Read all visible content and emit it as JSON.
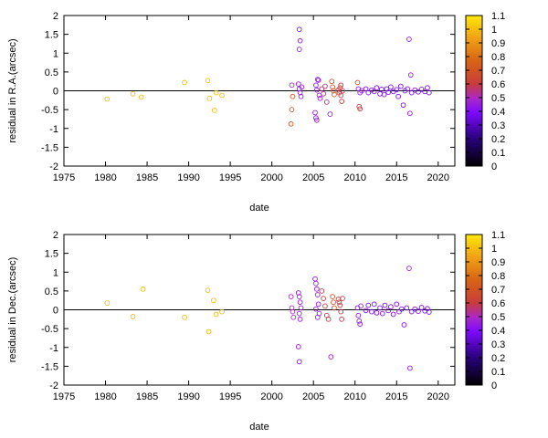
{
  "chart_data": [
    {
      "type": "scatter",
      "title": "",
      "xlabel": "date",
      "ylabel": "residual in R.A.(arcsec)",
      "xlim": [
        1975,
        2022
      ],
      "ylim": [
        -2,
        2
      ],
      "xticks": [
        "1975",
        "1980",
        "1985",
        "1990",
        "1995",
        "2000",
        "2005",
        "2010",
        "2015",
        "2020"
      ],
      "yticks": [
        "-2",
        "-1.5",
        "-1",
        "-0.5",
        "0",
        "0.5",
        "1",
        "1.5",
        "2"
      ],
      "zero_line": true,
      "grid": false,
      "marker": "open-circle",
      "colorbar": {
        "colormap": "black-purple-red-orange-yellow",
        "range": [
          0,
          1.1
        ],
        "ticks": [
          "0",
          "0.1",
          "0.2",
          "0.3",
          "0.4",
          "0.5",
          "0.6",
          "0.7",
          "0.8",
          "0.9",
          "1",
          "1.1"
        ]
      },
      "points": [
        {
          "x": 1980.2,
          "y": -0.22,
          "c": 1.0
        },
        {
          "x": 1983.3,
          "y": -0.08,
          "c": 1.0
        },
        {
          "x": 1984.3,
          "y": -0.17,
          "c": 1.0
        },
        {
          "x": 1989.5,
          "y": 0.22,
          "c": 1.0
        },
        {
          "x": 1992.3,
          "y": 0.27,
          "c": 1.0
        },
        {
          "x": 1992.5,
          "y": -0.2,
          "c": 1.0
        },
        {
          "x": 1993.1,
          "y": -0.52,
          "c": 1.0
        },
        {
          "x": 1993.3,
          "y": -0.05,
          "c": 1.0
        },
        {
          "x": 1994.0,
          "y": -0.12,
          "c": 1.0
        },
        {
          "x": 2002.3,
          "y": -0.88,
          "c": 0.7
        },
        {
          "x": 2002.4,
          "y": -0.5,
          "c": 0.7
        },
        {
          "x": 2002.5,
          "y": -0.15,
          "c": 0.7
        },
        {
          "x": 2002.4,
          "y": 0.15,
          "c": 0.5
        },
        {
          "x": 2003.3,
          "y": 1.63,
          "c": 0.45
        },
        {
          "x": 2003.4,
          "y": 1.33,
          "c": 0.45
        },
        {
          "x": 2003.3,
          "y": 1.1,
          "c": 0.45
        },
        {
          "x": 2003.2,
          "y": 0.18,
          "c": 0.45
        },
        {
          "x": 2003.3,
          "y": 0.05,
          "c": 0.45
        },
        {
          "x": 2003.4,
          "y": -0.05,
          "c": 0.45
        },
        {
          "x": 2003.5,
          "y": -0.15,
          "c": 0.45
        },
        {
          "x": 2003.6,
          "y": 0.1,
          "c": 0.45
        },
        {
          "x": 2005.2,
          "y": -0.58,
          "c": 0.45
        },
        {
          "x": 2005.3,
          "y": -0.72,
          "c": 0.45
        },
        {
          "x": 2005.4,
          "y": -0.78,
          "c": 0.45
        },
        {
          "x": 2005.5,
          "y": 0.3,
          "c": 0.45
        },
        {
          "x": 2005.6,
          "y": 0.28,
          "c": 0.45
        },
        {
          "x": 2005.3,
          "y": 0.15,
          "c": 0.45
        },
        {
          "x": 2005.4,
          "y": 0.02,
          "c": 0.45
        },
        {
          "x": 2005.7,
          "y": -0.12,
          "c": 0.45
        },
        {
          "x": 2005.8,
          "y": -0.2,
          "c": 0.45
        },
        {
          "x": 2006.0,
          "y": 0.05,
          "c": 0.55
        },
        {
          "x": 2006.2,
          "y": -0.08,
          "c": 0.55
        },
        {
          "x": 2006.4,
          "y": 0.12,
          "c": 0.55
        },
        {
          "x": 2006.6,
          "y": -0.3,
          "c": 0.55
        },
        {
          "x": 2007.0,
          "y": -0.62,
          "c": 0.45
        },
        {
          "x": 2007.2,
          "y": 0.25,
          "c": 0.7
        },
        {
          "x": 2007.3,
          "y": 0.1,
          "c": 0.7
        },
        {
          "x": 2007.4,
          "y": 0.0,
          "c": 0.7
        },
        {
          "x": 2007.5,
          "y": -0.1,
          "c": 0.7
        },
        {
          "x": 2008.0,
          "y": 0.02,
          "c": 0.6
        },
        {
          "x": 2008.1,
          "y": -0.05,
          "c": 0.6
        },
        {
          "x": 2008.2,
          "y": 0.08,
          "c": 0.6
        },
        {
          "x": 2008.3,
          "y": -0.12,
          "c": 0.6
        },
        {
          "x": 2008.4,
          "y": -0.28,
          "c": 0.6
        },
        {
          "x": 2008.3,
          "y": 0.15,
          "c": 0.6
        },
        {
          "x": 2008.5,
          "y": 0.0,
          "c": 0.6
        },
        {
          "x": 2010.3,
          "y": 0.22,
          "c": 0.7
        },
        {
          "x": 2010.5,
          "y": -0.42,
          "c": 0.6
        },
        {
          "x": 2010.6,
          "y": -0.48,
          "c": 0.6
        },
        {
          "x": 2010.4,
          "y": 0.05,
          "c": 0.45
        },
        {
          "x": 2010.6,
          "y": -0.05,
          "c": 0.45
        },
        {
          "x": 2010.8,
          "y": 0.0,
          "c": 0.45
        },
        {
          "x": 2011.3,
          "y": 0.05,
          "c": 0.4
        },
        {
          "x": 2011.6,
          "y": -0.05,
          "c": 0.4
        },
        {
          "x": 2012.0,
          "y": 0.02,
          "c": 0.4
        },
        {
          "x": 2012.3,
          "y": -0.02,
          "c": 0.4
        },
        {
          "x": 2012.6,
          "y": 0.08,
          "c": 0.4
        },
        {
          "x": 2013.0,
          "y": -0.08,
          "c": 0.4
        },
        {
          "x": 2013.2,
          "y": 0.04,
          "c": 0.4
        },
        {
          "x": 2013.5,
          "y": -0.1,
          "c": 0.4
        },
        {
          "x": 2013.8,
          "y": 0.05,
          "c": 0.4
        },
        {
          "x": 2014.0,
          "y": -0.04,
          "c": 0.4
        },
        {
          "x": 2014.3,
          "y": 0.1,
          "c": 0.4
        },
        {
          "x": 2014.6,
          "y": -0.02,
          "c": 0.4
        },
        {
          "x": 2015.0,
          "y": 0.03,
          "c": 0.4
        },
        {
          "x": 2015.2,
          "y": -0.15,
          "c": 0.4
        },
        {
          "x": 2015.5,
          "y": 0.12,
          "c": 0.4
        },
        {
          "x": 2015.8,
          "y": -0.38,
          "c": 0.4
        },
        {
          "x": 2016.0,
          "y": 0.0,
          "c": 0.4
        },
        {
          "x": 2016.3,
          "y": 0.05,
          "c": 0.4
        },
        {
          "x": 2016.5,
          "y": 1.37,
          "c": 0.45
        },
        {
          "x": 2016.6,
          "y": -0.6,
          "c": 0.45
        },
        {
          "x": 2016.7,
          "y": 0.42,
          "c": 0.45
        },
        {
          "x": 2016.8,
          "y": -0.05,
          "c": 0.4
        },
        {
          "x": 2017.2,
          "y": 0.02,
          "c": 0.4
        },
        {
          "x": 2017.6,
          "y": -0.03,
          "c": 0.4
        },
        {
          "x": 2018.0,
          "y": 0.04,
          "c": 0.4
        },
        {
          "x": 2018.4,
          "y": -0.02,
          "c": 0.4
        },
        {
          "x": 2018.7,
          "y": 0.08,
          "c": 0.4
        },
        {
          "x": 2018.9,
          "y": -0.05,
          "c": 0.4
        }
      ]
    },
    {
      "type": "scatter",
      "title": "",
      "xlabel": "date",
      "ylabel": "residual in Dec.(arcsec)",
      "xlim": [
        1975,
        2022
      ],
      "ylim": [
        -2,
        2
      ],
      "xticks": [
        "1975",
        "1980",
        "1985",
        "1990",
        "1995",
        "2000",
        "2005",
        "2010",
        "2015",
        "2020"
      ],
      "yticks": [
        "-2",
        "-1.5",
        "-1",
        "-0.5",
        "0",
        "0.5",
        "1",
        "1.5",
        "2"
      ],
      "zero_line": true,
      "grid": false,
      "marker": "open-circle",
      "colorbar": {
        "colormap": "black-purple-red-orange-yellow",
        "range": [
          0,
          1.1
        ],
        "ticks": [
          "0",
          "0.1",
          "0.2",
          "0.3",
          "0.4",
          "0.5",
          "0.6",
          "0.7",
          "0.8",
          "0.9",
          "1",
          "1.1"
        ]
      },
      "points": [
        {
          "x": 1980.2,
          "y": 0.18,
          "c": 1.0
        },
        {
          "x": 1983.3,
          "y": -0.18,
          "c": 1.0
        },
        {
          "x": 1984.5,
          "y": 0.55,
          "c": 1.0
        },
        {
          "x": 1989.5,
          "y": -0.2,
          "c": 1.0
        },
        {
          "x": 1992.3,
          "y": 0.52,
          "c": 1.0
        },
        {
          "x": 1992.4,
          "y": -0.58,
          "c": 1.0
        },
        {
          "x": 1993.0,
          "y": 0.25,
          "c": 1.0
        },
        {
          "x": 1993.3,
          "y": -0.12,
          "c": 1.0
        },
        {
          "x": 1994.0,
          "y": -0.05,
          "c": 1.0
        },
        {
          "x": 2002.3,
          "y": 0.35,
          "c": 0.5
        },
        {
          "x": 2002.4,
          "y": 0.05,
          "c": 0.5
        },
        {
          "x": 2002.5,
          "y": -0.05,
          "c": 0.5
        },
        {
          "x": 2002.6,
          "y": -0.2,
          "c": 0.5
        },
        {
          "x": 2003.2,
          "y": 0.45,
          "c": 0.45
        },
        {
          "x": 2003.3,
          "y": 0.35,
          "c": 0.45
        },
        {
          "x": 2003.4,
          "y": 0.2,
          "c": 0.45
        },
        {
          "x": 2003.5,
          "y": 0.05,
          "c": 0.45
        },
        {
          "x": 2003.3,
          "y": -0.1,
          "c": 0.45
        },
        {
          "x": 2003.4,
          "y": -0.25,
          "c": 0.45
        },
        {
          "x": 2003.2,
          "y": -0.98,
          "c": 0.45
        },
        {
          "x": 2003.3,
          "y": -1.38,
          "c": 0.45
        },
        {
          "x": 2005.2,
          "y": 0.82,
          "c": 0.45
        },
        {
          "x": 2005.3,
          "y": 0.7,
          "c": 0.45
        },
        {
          "x": 2005.4,
          "y": 0.55,
          "c": 0.45
        },
        {
          "x": 2005.5,
          "y": 0.4,
          "c": 0.45
        },
        {
          "x": 2005.6,
          "y": 0.15,
          "c": 0.45
        },
        {
          "x": 2005.3,
          "y": 0.02,
          "c": 0.45
        },
        {
          "x": 2005.7,
          "y": -0.1,
          "c": 0.45
        },
        {
          "x": 2005.5,
          "y": -0.2,
          "c": 0.45
        },
        {
          "x": 2006.0,
          "y": 0.5,
          "c": 0.6
        },
        {
          "x": 2006.2,
          "y": 0.3,
          "c": 0.6
        },
        {
          "x": 2006.4,
          "y": 0.1,
          "c": 0.6
        },
        {
          "x": 2006.6,
          "y": -0.15,
          "c": 0.6
        },
        {
          "x": 2006.8,
          "y": -0.25,
          "c": 0.6
        },
        {
          "x": 2007.1,
          "y": -1.25,
          "c": 0.45
        },
        {
          "x": 2007.3,
          "y": 0.35,
          "c": 0.7
        },
        {
          "x": 2007.4,
          "y": 0.2,
          "c": 0.7
        },
        {
          "x": 2007.5,
          "y": 0.05,
          "c": 0.7
        },
        {
          "x": 2008.0,
          "y": 0.28,
          "c": 0.6
        },
        {
          "x": 2008.1,
          "y": 0.2,
          "c": 0.6
        },
        {
          "x": 2008.2,
          "y": 0.12,
          "c": 0.6
        },
        {
          "x": 2008.3,
          "y": -0.05,
          "c": 0.6
        },
        {
          "x": 2008.4,
          "y": -0.25,
          "c": 0.6
        },
        {
          "x": 2008.5,
          "y": 0.3,
          "c": 0.6
        },
        {
          "x": 2010.3,
          "y": 0.05,
          "c": 0.45
        },
        {
          "x": 2010.4,
          "y": -0.15,
          "c": 0.45
        },
        {
          "x": 2010.5,
          "y": -0.3,
          "c": 0.45
        },
        {
          "x": 2010.6,
          "y": -0.38,
          "c": 0.45
        },
        {
          "x": 2010.7,
          "y": 0.1,
          "c": 0.45
        },
        {
          "x": 2011.3,
          "y": -0.02,
          "c": 0.4
        },
        {
          "x": 2011.6,
          "y": 0.12,
          "c": 0.4
        },
        {
          "x": 2012.0,
          "y": -0.05,
          "c": 0.4
        },
        {
          "x": 2012.3,
          "y": 0.15,
          "c": 0.4
        },
        {
          "x": 2012.6,
          "y": -0.08,
          "c": 0.4
        },
        {
          "x": 2013.0,
          "y": 0.05,
          "c": 0.4
        },
        {
          "x": 2013.3,
          "y": -0.1,
          "c": 0.4
        },
        {
          "x": 2013.6,
          "y": 0.12,
          "c": 0.4
        },
        {
          "x": 2014.0,
          "y": -0.02,
          "c": 0.4
        },
        {
          "x": 2014.3,
          "y": 0.08,
          "c": 0.4
        },
        {
          "x": 2014.6,
          "y": -0.12,
          "c": 0.4
        },
        {
          "x": 2015.0,
          "y": 0.15,
          "c": 0.4
        },
        {
          "x": 2015.3,
          "y": -0.05,
          "c": 0.4
        },
        {
          "x": 2015.6,
          "y": 0.02,
          "c": 0.4
        },
        {
          "x": 2015.9,
          "y": -0.4,
          "c": 0.4
        },
        {
          "x": 2016.2,
          "y": 0.05,
          "c": 0.4
        },
        {
          "x": 2016.5,
          "y": 1.1,
          "c": 0.45
        },
        {
          "x": 2016.6,
          "y": -1.55,
          "c": 0.45
        },
        {
          "x": 2016.8,
          "y": -0.05,
          "c": 0.4
        },
        {
          "x": 2017.2,
          "y": 0.02,
          "c": 0.4
        },
        {
          "x": 2017.6,
          "y": -0.04,
          "c": 0.4
        },
        {
          "x": 2018.0,
          "y": 0.06,
          "c": 0.4
        },
        {
          "x": 2018.4,
          "y": -0.03,
          "c": 0.4
        },
        {
          "x": 2018.7,
          "y": 0.03,
          "c": 0.4
        },
        {
          "x": 2018.9,
          "y": -0.06,
          "c": 0.4
        }
      ]
    }
  ]
}
